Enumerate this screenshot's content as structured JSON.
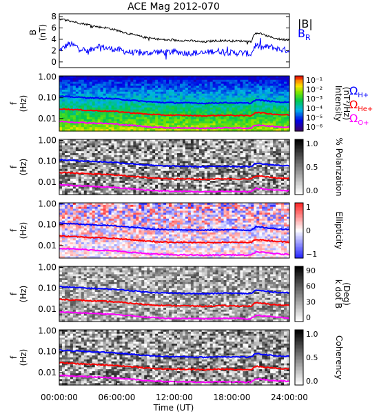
{
  "title": "ACE Mag 2012-070",
  "x_axis": {
    "label": "Time (UT)",
    "ticks": [
      "00:00:00",
      "06:00:00",
      "12:00:00",
      "18:00:00",
      "24:00:00"
    ],
    "range_hours": [
      0,
      24
    ]
  },
  "panel1": {
    "ylabel": "B",
    "yunit": "(nT)",
    "yticks": [
      "8",
      "6",
      "4",
      "2",
      "0"
    ],
    "ylim": [
      -1,
      8.5
    ],
    "legend": [
      {
        "label": "|B|",
        "color": "#000000"
      },
      {
        "label": "B",
        "sub": "R",
        "color": "#0000ff"
      }
    ]
  },
  "freq_panels": {
    "ylabel": "f",
    "yunit": "(Hz)",
    "yticks": [
      "1.00",
      "0.10",
      "0.01"
    ],
    "ylim_log10": [
      -2.6,
      0.05
    ]
  },
  "panel2": {
    "colorbar_label_line1": "Intensity",
    "colorbar_label_line2": "(nT²/Hz)",
    "colorbar_ticks": [
      "10⁻¹",
      "10⁻²",
      "10⁻³",
      "10⁻⁴",
      "10⁻⁵",
      "10⁻⁶"
    ],
    "colormap": "rainbow",
    "gyro_legend": [
      {
        "symbol": "Ω",
        "sub": "H+",
        "color": "#0000ff"
      },
      {
        "symbol": "Ω",
        "sub": "He+",
        "color": "#ff0000"
      },
      {
        "symbol": "Ω",
        "sub": "O+",
        "color": "#ff00ff"
      }
    ]
  },
  "panel3": {
    "colorbar_label": "% Polarization",
    "colorbar_ticks": [
      "1.0",
      "0.5",
      "0.0"
    ],
    "colormap": "gray"
  },
  "panel4": {
    "colorbar_label": "Ellipticity",
    "colorbar_ticks": [
      "1",
      "0",
      "−1"
    ],
    "colormap": "blue-white-red"
  },
  "panel5": {
    "colorbar_label_line1": "k dot B",
    "colorbar_label_line2": "(Deg)",
    "colorbar_ticks": [
      "90",
      "60",
      "30",
      "0"
    ],
    "colormap": "gray"
  },
  "panel6": {
    "colorbar_label": "Coherency",
    "colorbar_ticks": [
      "1.0",
      "0.5",
      "0.0"
    ],
    "colormap": "gray"
  },
  "chart_data": {
    "type": "line",
    "title": "ACE Mag 2012-070",
    "xlabel": "Time (UT)",
    "x": [
      0,
      1,
      2,
      3,
      4,
      5,
      6,
      7,
      8,
      9,
      10,
      11,
      12,
      13,
      14,
      15,
      16,
      17,
      18,
      19,
      20,
      20.5,
      21,
      22,
      23,
      24
    ],
    "B_magnitude": [
      7.6,
      7.3,
      6.9,
      6.6,
      6.2,
      6.0,
      5.6,
      5.1,
      4.7,
      4.3,
      4.1,
      3.9,
      3.8,
      3.8,
      3.7,
      3.5,
      3.7,
      3.8,
      3.7,
      3.7,
      3.6,
      5.2,
      5.0,
      4.4,
      4.0,
      3.9
    ],
    "B_R": [
      2.0,
      3.2,
      2.6,
      1.8,
      2.9,
      2.4,
      2.2,
      1.8,
      1.6,
      1.5,
      1.8,
      1.7,
      1.8,
      1.6,
      1.6,
      1.5,
      1.9,
      1.9,
      1.6,
      1.6,
      1.4,
      3.1,
      2.5,
      2.7,
      2.2,
      2.0
    ],
    "f_H_plus_Hz": [
      0.118,
      0.112,
      0.106,
      0.101,
      0.096,
      0.092,
      0.087,
      0.079,
      0.073,
      0.066,
      0.062,
      0.059,
      0.058,
      0.057,
      0.056,
      0.054,
      0.056,
      0.058,
      0.057,
      0.056,
      0.055,
      0.08,
      0.076,
      0.068,
      0.062,
      0.06
    ],
    "f_He_plus_Hz": [
      0.0295,
      0.028,
      0.0265,
      0.025,
      0.024,
      0.023,
      0.0218,
      0.0198,
      0.0183,
      0.0165,
      0.0155,
      0.0148,
      0.0145,
      0.0143,
      0.014,
      0.0135,
      0.014,
      0.0145,
      0.0143,
      0.014,
      0.0138,
      0.02,
      0.019,
      0.017,
      0.0155,
      0.015
    ],
    "f_O_plus_Hz": [
      0.0074,
      0.007,
      0.0066,
      0.0063,
      0.006,
      0.0058,
      0.0054,
      0.0049,
      0.0046,
      0.0041,
      0.0039,
      0.0037,
      0.0036,
      0.0036,
      0.0035,
      0.0034,
      0.0035,
      0.0036,
      0.0036,
      0.0035,
      0.0034,
      0.005,
      0.0048,
      0.0043,
      0.0039,
      0.0038
    ]
  }
}
